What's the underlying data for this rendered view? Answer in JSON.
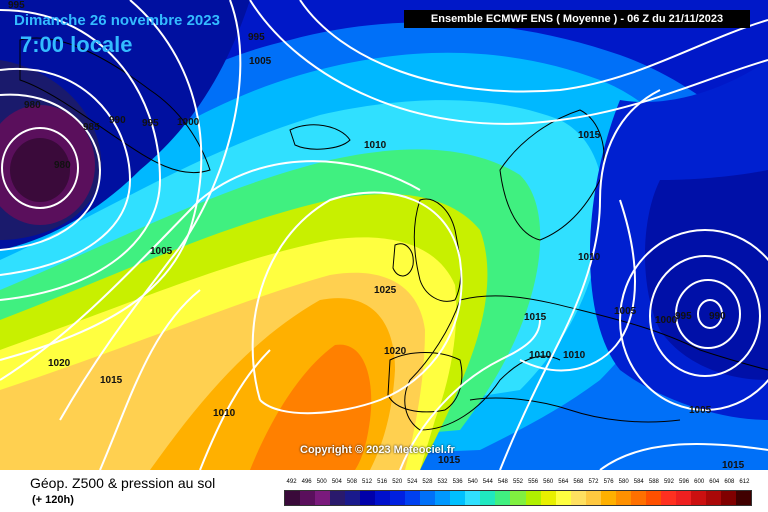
{
  "header": {
    "date": "Dimanche 26 novembre 2023",
    "time": "7:00 locale",
    "model": "Ensemble ECMWF ENS  ( Moyenne )  - 06 Z du 21/11/2023"
  },
  "copyright": "Copyright © 2023 Meteociel.fr",
  "footer": {
    "title": "Géop. Z500 & pression au sol",
    "lead": "(+ 120h)"
  },
  "isobars": [
    {
      "text": "995"
    },
    {
      "text": "995"
    },
    {
      "text": "1005"
    },
    {
      "text": "980"
    },
    {
      "text": "985"
    },
    {
      "text": "990"
    },
    {
      "text": "995"
    },
    {
      "text": "1000"
    },
    {
      "text": "980"
    },
    {
      "text": "1010"
    },
    {
      "text": "1015"
    },
    {
      "text": "1005"
    },
    {
      "text": "1025"
    },
    {
      "text": "1010"
    },
    {
      "text": "1020"
    },
    {
      "text": "1015"
    },
    {
      "text": "1015"
    },
    {
      "text": "1010"
    },
    {
      "text": "1010"
    },
    {
      "text": "1005"
    },
    {
      "text": "1000"
    },
    {
      "text": "995"
    },
    {
      "text": "990"
    },
    {
      "text": "1020"
    },
    {
      "text": "1015"
    },
    {
      "text": "1010"
    },
    {
      "text": "1005"
    },
    {
      "text": "1015"
    },
    {
      "text": "1015"
    }
  ],
  "legend": {
    "values": [
      "492",
      "496",
      "500",
      "504",
      "508",
      "512",
      "516",
      "520",
      "524",
      "528",
      "532",
      "536",
      "540",
      "544",
      "548",
      "552",
      "556",
      "560",
      "564",
      "568",
      "572",
      "576",
      "580",
      "584",
      "588",
      "592",
      "596",
      "600",
      "604",
      "608",
      "612"
    ],
    "colors": [
      "#3a0a3a",
      "#5a0f5c",
      "#7a1a7c",
      "#2a1a6c",
      "#1a1a8c",
      "#0000aa",
      "#0010cc",
      "#0020e0",
      "#0040f0",
      "#0070f8",
      "#0098ff",
      "#00c0ff",
      "#30e0ff",
      "#20e8c0",
      "#40f080",
      "#80f040",
      "#b0f000",
      "#e8f000",
      "#ffff40",
      "#ffe060",
      "#ffc840",
      "#ffb000",
      "#ff9000",
      "#ff7000",
      "#ff5000",
      "#ff3020",
      "#ee2020",
      "#cc1010",
      "#aa0808",
      "#800000",
      "#400000"
    ]
  }
}
